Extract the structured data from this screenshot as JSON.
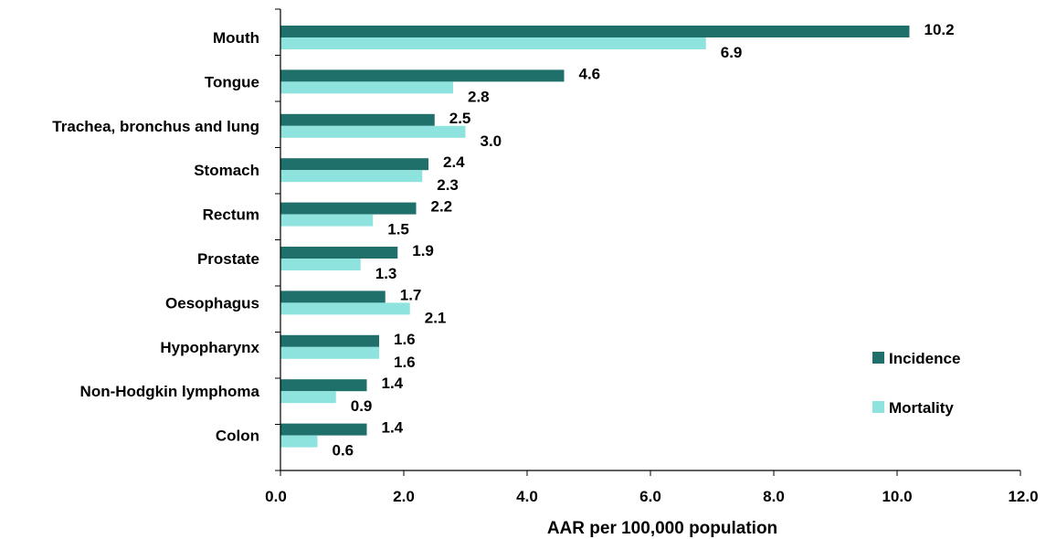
{
  "chart_data": {
    "type": "bar",
    "orientation": "horizontal",
    "title": "",
    "xlabel": "AAR per 100,000 population",
    "ylabel": "",
    "xlim": [
      0,
      12
    ],
    "xticks": [
      "0.0",
      "2.0",
      "4.0",
      "6.0",
      "8.0",
      "10.0",
      "12.0"
    ],
    "grid": false,
    "legend_position": "right",
    "categories": [
      "Mouth",
      "Tongue",
      "Trachea, bronchus and lung",
      "Stomach",
      "Rectum",
      "Prostate",
      "Oesophagus",
      "Hypopharynx",
      "Non-Hodgkin lymphoma",
      "Colon"
    ],
    "series": [
      {
        "name": "Incidence",
        "color": "#1f6f6b",
        "values": [
          10.2,
          4.6,
          2.5,
          2.4,
          2.2,
          1.9,
          1.7,
          1.6,
          1.4,
          1.4
        ],
        "labels": [
          "10.2",
          "4.6",
          "2.5",
          "2.4",
          "2.2",
          "1.9",
          "1.7",
          "1.6",
          "1.4",
          "1.4"
        ]
      },
      {
        "name": "Mortality",
        "color": "#8fe3de",
        "values": [
          6.9,
          2.8,
          3.0,
          2.3,
          1.5,
          1.3,
          2.1,
          1.6,
          0.9,
          0.6
        ],
        "labels": [
          "6.9",
          "2.8",
          "3.0",
          "2.3",
          "1.5",
          "1.3",
          "2.1",
          "1.6",
          "0.9",
          "0.6"
        ]
      }
    ]
  }
}
